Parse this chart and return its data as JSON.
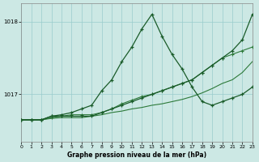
{
  "title": "Graphe pression niveau de la mer (hPa)",
  "bg_color": "#cce8e4",
  "grid_color": "#99cccc",
  "line_colors": [
    "#1a5c2a",
    "#1a5c2a",
    "#2d7a3a",
    "#2d7a3a"
  ],
  "xlim": [
    0,
    23
  ],
  "ylim": [
    1016.35,
    1018.25
  ],
  "yticks": [
    1017,
    1018
  ],
  "xticks": [
    0,
    1,
    2,
    3,
    4,
    5,
    6,
    7,
    8,
    9,
    10,
    11,
    12,
    13,
    14,
    15,
    16,
    17,
    18,
    19,
    20,
    21,
    22,
    23
  ],
  "line1_x": [
    0,
    1,
    2,
    3,
    4,
    5,
    6,
    7,
    8,
    9,
    10,
    11,
    12,
    13,
    14,
    15,
    16,
    17,
    18,
    19,
    20,
    21,
    22,
    23
  ],
  "line1_y": [
    1016.65,
    1016.65,
    1016.65,
    1016.7,
    1016.7,
    1016.7,
    1016.7,
    1016.7,
    1016.75,
    1016.8,
    1016.85,
    1016.9,
    1016.95,
    1017.0,
    1017.05,
    1017.1,
    1017.15,
    1017.2,
    1017.3,
    1017.4,
    1017.5,
    1017.6,
    1017.75,
    1018.1
  ],
  "line2_x": [
    0,
    1,
    2,
    3,
    4,
    5,
    6,
    7,
    8,
    9,
    10,
    11,
    12,
    13,
    14,
    15,
    16,
    17,
    18,
    19,
    20,
    21,
    22,
    23
  ],
  "line2_y": [
    1016.65,
    1016.65,
    1016.65,
    1016.7,
    1016.72,
    1016.75,
    1016.8,
    1016.85,
    1017.05,
    1017.2,
    1017.45,
    1017.65,
    1017.9,
    1018.1,
    1017.8,
    1017.55,
    1017.35,
    1017.1,
    1016.9,
    1016.85,
    1016.9,
    1016.95,
    1017.0,
    1017.1
  ],
  "line3_x": [
    0,
    1,
    2,
    3,
    4,
    5,
    6,
    7,
    8,
    9,
    10,
    11,
    12,
    13,
    14,
    15,
    16,
    17,
    18,
    19,
    20,
    21,
    22,
    23
  ],
  "line3_y": [
    1016.65,
    1016.65,
    1016.65,
    1016.68,
    1016.7,
    1016.72,
    1016.72,
    1016.72,
    1016.75,
    1016.8,
    1016.87,
    1016.92,
    1016.97,
    1017.0,
    1017.05,
    1017.1,
    1017.15,
    1017.2,
    1017.3,
    1017.4,
    1017.5,
    1017.55,
    1017.6,
    1017.65
  ],
  "line4_x": [
    0,
    1,
    2,
    3,
    4,
    5,
    6,
    7,
    8,
    9,
    10,
    11,
    12,
    13,
    14,
    15,
    16,
    17,
    18,
    19,
    20,
    21,
    22,
    23
  ],
  "line4_y": [
    1016.65,
    1016.65,
    1016.65,
    1016.67,
    1016.68,
    1016.68,
    1016.68,
    1016.7,
    1016.72,
    1016.75,
    1016.77,
    1016.8,
    1016.82,
    1016.85,
    1016.87,
    1016.9,
    1016.93,
    1016.97,
    1017.02,
    1017.08,
    1017.15,
    1017.2,
    1017.3,
    1017.45
  ]
}
